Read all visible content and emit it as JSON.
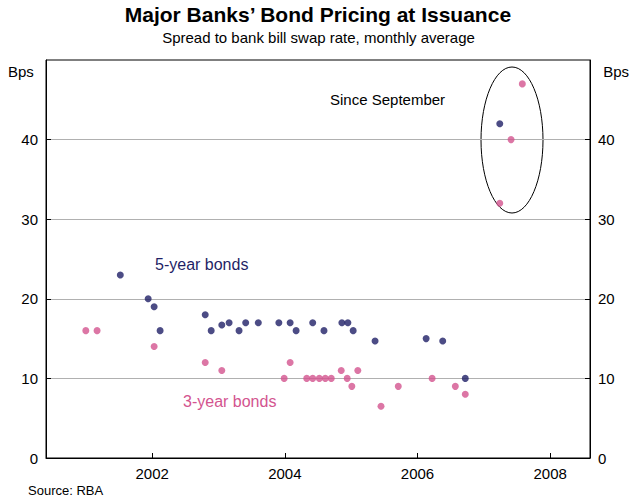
{
  "chart_data": {
    "type": "scatter",
    "title": "Major Banks’ Bond Pricing at Issuance",
    "subtitle": "Spread to bank bill swap rate, monthly average",
    "y_label": "Bps",
    "source": "Source: RBA",
    "annotations": [
      "Since September"
    ],
    "xlim": [
      2000.4,
      2008.6
    ],
    "xticks": [
      2002,
      2004,
      2006,
      2008
    ],
    "ylim": [
      0,
      50
    ],
    "yticks": [
      0,
      10,
      20,
      30,
      40
    ],
    "grid": true,
    "marker": "circle",
    "series": [
      {
        "name": "5-year bonds",
        "color": "#1f1f66",
        "x": [
          2001.52,
          2001.94,
          2002.03,
          2002.12,
          2002.8,
          2002.89,
          2003.05,
          2003.16,
          2003.31,
          2003.41,
          2003.6,
          2003.91,
          2004.08,
          2004.17,
          2004.42,
          2004.59,
          2004.86,
          2004.95,
          2005.03,
          2005.36,
          2006.13,
          2006.38,
          2006.72,
          2007.24
        ],
        "values": [
          23,
          20,
          19,
          16,
          18,
          16,
          16.7,
          17,
          16,
          17,
          17,
          17,
          17,
          16,
          17,
          16,
          17,
          17,
          16,
          14.7,
          15,
          14.7,
          10,
          42
        ]
      },
      {
        "name": "3-year bonds",
        "color": "#d3548f",
        "x": [
          2001.0,
          2001.17,
          2002.03,
          2002.8,
          2003.05,
          2003.99,
          2004.08,
          2004.33,
          2004.42,
          2004.52,
          2004.61,
          2004.7,
          2004.85,
          2004.94,
          2005.01,
          2005.1,
          2005.45,
          2005.71,
          2006.22,
          2006.57,
          2006.72,
          2007.24,
          2007.41,
          2007.58
        ],
        "values": [
          16,
          16,
          14,
          12,
          11,
          10,
          12,
          10,
          10,
          10,
          10,
          10,
          11,
          10,
          9,
          11,
          6.5,
          9,
          10,
          9,
          8,
          32,
          40,
          47
        ]
      }
    ]
  }
}
